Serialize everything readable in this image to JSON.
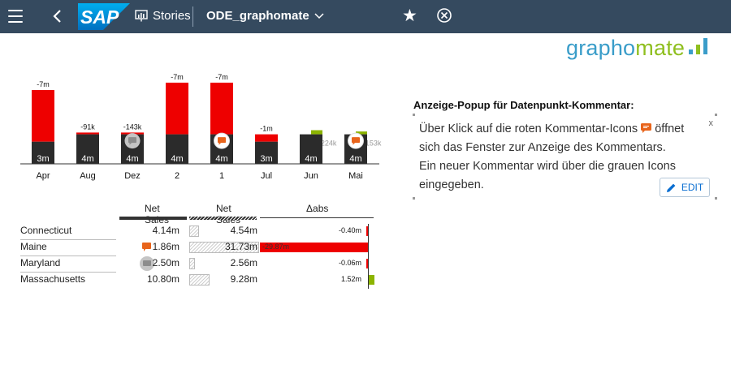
{
  "shell": {
    "logo": "SAP",
    "section_label": "Stories",
    "document_title": "ODE_graphomate"
  },
  "brand": {
    "part1": "grapho",
    "part2": "mate"
  },
  "chart_data": {
    "type": "bar",
    "categories": [
      "Apr",
      "Aug",
      "Dez",
      "2",
      "1",
      "Jul",
      "Jun",
      "Mai"
    ],
    "base_values": [
      3,
      4,
      4,
      4,
      4,
      3,
      4,
      4
    ],
    "base_labels": [
      "3m",
      "4m",
      "4m",
      "4m",
      "4m",
      "3m",
      "4m",
      "4m"
    ],
    "delta_labels": [
      "-7m",
      "-91k",
      "-143k",
      "-7m",
      "-7m",
      "-1m",
      "+224k",
      "+153k"
    ],
    "delta_values": [
      -7,
      -0.091,
      -0.143,
      -7,
      -7,
      -1,
      0.224,
      0.153
    ],
    "comment_icons": [
      "none",
      "none",
      "grey",
      "none",
      "orange",
      "none",
      "none",
      "orange"
    ],
    "colors": {
      "base": "#2b2b2b",
      "negative": "#ee0000",
      "positive": "#8cb400",
      "comment": "#e8641b",
      "comment_empty": "#bdbdbd"
    }
  },
  "table": {
    "headers": [
      "Net Sales",
      "Net Sales",
      "Δabs"
    ],
    "rows": [
      {
        "label": "Connecticut",
        "ac": "4.14m",
        "py": "4.54m",
        "delta": "-0.40m",
        "delta_value": -0.4,
        "py_ratio": 0.143,
        "comment": "none"
      },
      {
        "label": "Maine",
        "ac": "1.86m",
        "py": "31.73m",
        "delta": "-29.87m",
        "delta_value": -29.87,
        "py_ratio": 1.0,
        "comment": "orange"
      },
      {
        "label": "Maryland",
        "ac": "2.50m",
        "py": "2.56m",
        "delta": "-0.06m",
        "delta_value": -0.06,
        "py_ratio": 0.081,
        "comment": "grey"
      },
      {
        "label": "Massachusetts",
        "ac": "10.80m",
        "py": "9.28m",
        "delta": "1.52m",
        "delta_value": 1.52,
        "py_ratio": 0.292,
        "comment": "none"
      }
    ]
  },
  "popup": {
    "title": "Anzeige-Popup für Datenpunkt-Kommentar:",
    "line1_pre": "Über Klick auf die roten Kommentar-Icons",
    "line1_post": " öffnet",
    "line2": "sich das Fenster zur Anzeige des Kommentars.",
    "line3": "Ein neuer Kommentar wird über die grauen Icons",
    "line4": "eingegeben.",
    "close_label": "x",
    "edit_label": "EDIT"
  }
}
